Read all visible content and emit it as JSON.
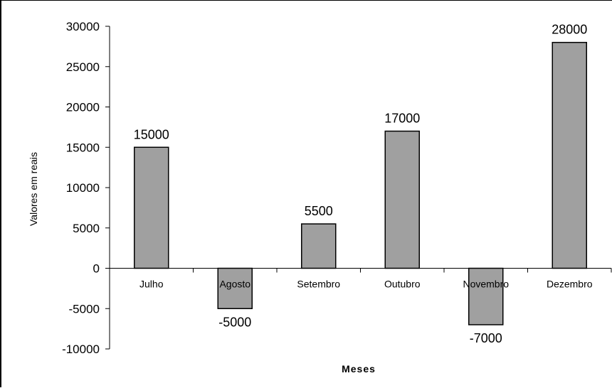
{
  "chart_data": {
    "type": "bar",
    "title": "",
    "xlabel": "Meses",
    "ylabel": "Valores em reais",
    "categories": [
      "Julho",
      "Agosto",
      "Setembro",
      "Outubro",
      "Novembro",
      "Dezembro"
    ],
    "values": [
      15000,
      -5000,
      5500,
      17000,
      -7000,
      28000
    ],
    "data_labels": [
      "15000",
      "-5000",
      "5500",
      "17000",
      "-7000",
      "28000"
    ],
    "ylim": [
      -10000,
      30000
    ],
    "yticks": [
      "-10000",
      "-5000",
      "0",
      "5000",
      "10000",
      "15000",
      "20000",
      "25000",
      "30000"
    ],
    "grid": false,
    "legend": "none",
    "bar_color": "#a0a0a0",
    "bar_edge_color": "#000000"
  }
}
